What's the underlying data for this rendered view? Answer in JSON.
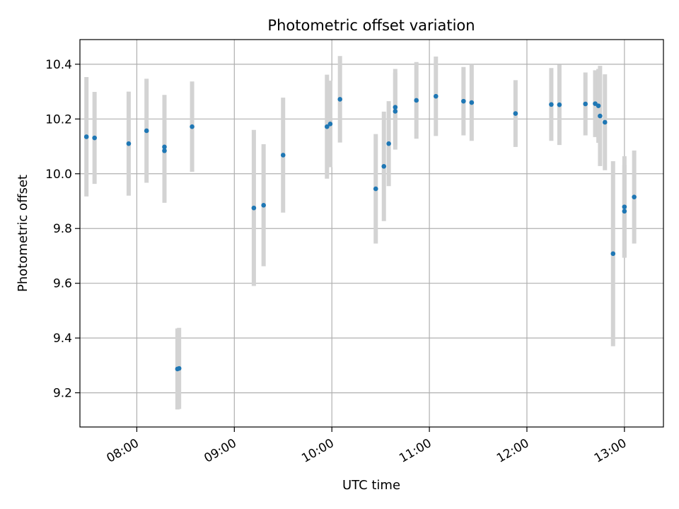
{
  "chart_data": {
    "type": "scatter",
    "title": "Photometric offset variation",
    "xlabel": "UTC time",
    "ylabel": "Photometric offset",
    "x_tick_labels": [
      "08:00",
      "09:00",
      "10:00",
      "11:00",
      "12:00",
      "13:00"
    ],
    "y_tick_labels": [
      "9.2",
      "9.4",
      "9.6",
      "9.8",
      "10.0",
      "10.2",
      "10.4"
    ],
    "x_ticks": [
      "08:00",
      "09:00",
      "10:00",
      "11:00",
      "12:00",
      "13:00"
    ],
    "y_ticks": [
      9.2,
      9.4,
      9.6,
      9.8,
      10.0,
      10.2,
      10.4
    ],
    "xlim": [
      "07:25",
      "13:24"
    ],
    "ylim": [
      9.075,
      10.49
    ],
    "grid": true,
    "point_color": "#1f77b4",
    "errorbar_color": "#d3d3d3",
    "points": [
      {
        "x": "07:29",
        "y": 10.135,
        "err": 0.218
      },
      {
        "x": "07:34",
        "y": 10.131,
        "err": 0.168
      },
      {
        "x": "07:55",
        "y": 10.11,
        "err": 0.19
      },
      {
        "x": "08:06",
        "y": 10.157,
        "err": 0.19
      },
      {
        "x": "08:17",
        "y": 10.098,
        "err": 0.19
      },
      {
        "x": "08:17",
        "y": 10.084,
        "err": 0.19
      },
      {
        "x": "08:25",
        "y": 9.287,
        "err": 0.148
      },
      {
        "x": "08:26",
        "y": 9.289,
        "err": 0.148
      },
      {
        "x": "08:34",
        "y": 10.172,
        "err": 0.165
      },
      {
        "x": "09:12",
        "y": 9.875,
        "err": 0.285
      },
      {
        "x": "09:18",
        "y": 9.885,
        "err": 0.223
      },
      {
        "x": "09:30",
        "y": 10.068,
        "err": 0.21
      },
      {
        "x": "09:57",
        "y": 10.172,
        "err": 0.19
      },
      {
        "x": "09:59",
        "y": 10.182,
        "err": 0.158
      },
      {
        "x": "10:05",
        "y": 10.272,
        "err": 0.158
      },
      {
        "x": "10:27",
        "y": 9.945,
        "err": 0.2
      },
      {
        "x": "10:32",
        "y": 10.027,
        "err": 0.2
      },
      {
        "x": "10:35",
        "y": 10.11,
        "err": 0.155
      },
      {
        "x": "10:39",
        "y": 10.243,
        "err": 0.14
      },
      {
        "x": "10:39",
        "y": 10.228,
        "err": 0.14
      },
      {
        "x": "10:52",
        "y": 10.268,
        "err": 0.14
      },
      {
        "x": "11:04",
        "y": 10.283,
        "err": 0.145
      },
      {
        "x": "11:21",
        "y": 10.265,
        "err": 0.125
      },
      {
        "x": "11:26",
        "y": 10.26,
        "err": 0.14
      },
      {
        "x": "11:53",
        "y": 10.22,
        "err": 0.122
      },
      {
        "x": "12:15",
        "y": 10.253,
        "err": 0.133
      },
      {
        "x": "12:20",
        "y": 10.252,
        "err": 0.147
      },
      {
        "x": "12:36",
        "y": 10.255,
        "err": 0.115
      },
      {
        "x": "12:42",
        "y": 10.256,
        "err": 0.122
      },
      {
        "x": "12:44",
        "y": 10.248,
        "err": 0.135
      },
      {
        "x": "12:45",
        "y": 10.211,
        "err": 0.183
      },
      {
        "x": "12:48",
        "y": 10.188,
        "err": 0.175
      },
      {
        "x": "12:53",
        "y": 9.708,
        "err": 0.338
      },
      {
        "x": "13:00",
        "y": 9.879,
        "err": 0.185
      },
      {
        "x": "13:00",
        "y": 9.863,
        "err": 0.17
      },
      {
        "x": "13:06",
        "y": 9.915,
        "err": 0.17
      }
    ]
  }
}
